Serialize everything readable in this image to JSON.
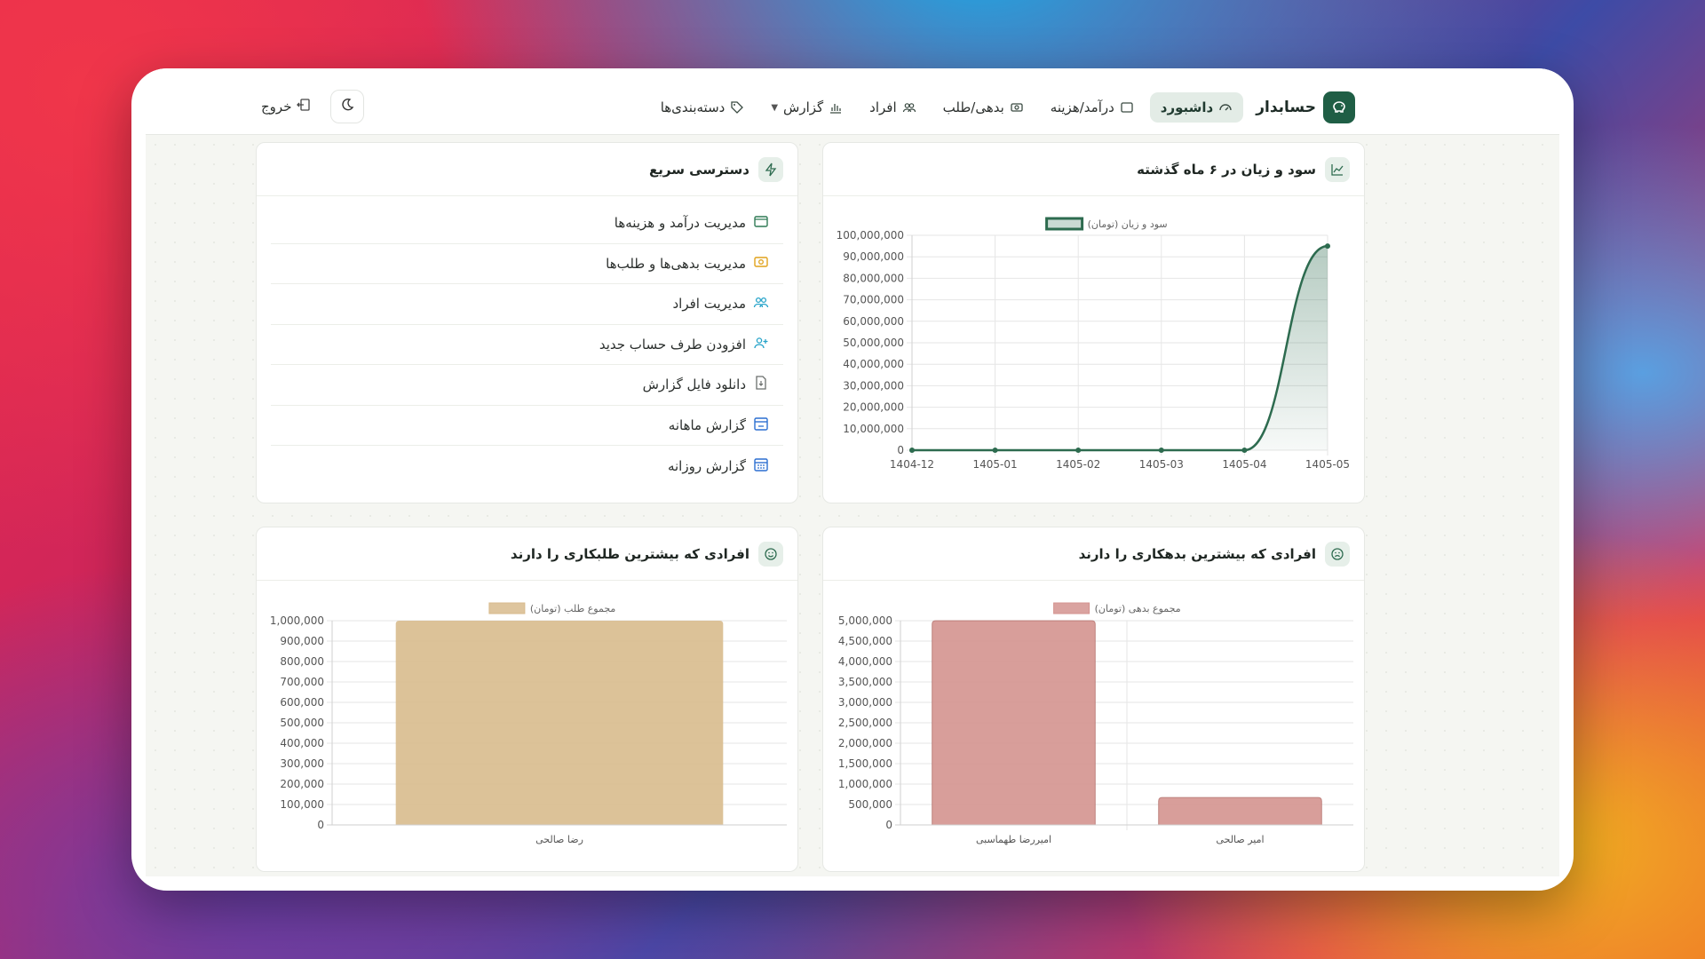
{
  "nav": {
    "brand": "حسابدار",
    "items": [
      {
        "label": "داشبورد",
        "icon": "dashboard-icon"
      },
      {
        "label": "درآمد/هزینه",
        "icon": "wallet-icon"
      },
      {
        "label": "بدهی/طلب",
        "icon": "money-icon"
      },
      {
        "label": "افراد",
        "icon": "people-icon"
      },
      {
        "label": "گزارش",
        "icon": "chart-icon"
      },
      {
        "label": "دسته‌بندی‌ها",
        "icon": "tag-icon"
      }
    ],
    "logout": "خروج"
  },
  "profit_card": {
    "title": "سود و زیان در ۶ ماه گذشته"
  },
  "quick_card": {
    "title": "دسترسی سریع",
    "items": [
      {
        "label": "مدیریت درآمد و هزینه‌ها",
        "icon": "wallet-icon",
        "color": "#2f7a55"
      },
      {
        "label": "مدیریت بدهی‌ها و طلب‌ها",
        "icon": "money-icon",
        "color": "#e0a21b"
      },
      {
        "label": "مدیریت افراد",
        "icon": "people-icon",
        "color": "#25a3c9"
      },
      {
        "label": "افزودن طرف حساب جدید",
        "icon": "person-add-icon",
        "color": "#25a3c9"
      },
      {
        "label": "دانلود فایل گزارش",
        "icon": "file-download-icon",
        "color": "#6b6f6d"
      },
      {
        "label": "گزارش ماهانه",
        "icon": "calendar-month-icon",
        "color": "#2c6fd1"
      },
      {
        "label": "گزارش روزانه",
        "icon": "calendar-day-icon",
        "color": "#2c6fd1"
      }
    ]
  },
  "debtors_card": {
    "title": "افرادی که بیشترین بدهکاری را دارند"
  },
  "creditors_card": {
    "title": "افرادی که بیشترین طلبکاری را دارند"
  },
  "chart_data": [
    {
      "id": "profit",
      "type": "line",
      "legend": "سود و زیان (تومان)",
      "categories": [
        "1404-12",
        "1405-01",
        "1405-02",
        "1405-03",
        "1405-04",
        "1405-05"
      ],
      "values": [
        0,
        0,
        0,
        0,
        0,
        95000000
      ],
      "ylim": [
        0,
        100000000
      ],
      "ytick_step": 10000000,
      "color": "#2d6b4f"
    },
    {
      "id": "debtors",
      "type": "bar",
      "legend": "مجموع بدهی (تومان)",
      "categories": [
        "امیررضا طهماسبی",
        "امیر صالحی"
      ],
      "values": [
        5000000,
        670000
      ],
      "ylim": [
        0,
        5000000
      ],
      "ytick_step": 500000,
      "color": "#d4938f"
    },
    {
      "id": "creditors",
      "type": "bar",
      "legend": "مجموع طلب (تومان)",
      "categories": [
        "رضا صالحی"
      ],
      "values": [
        1000000
      ],
      "ylim": [
        0,
        1000000
      ],
      "ytick_step": 100000,
      "color": "#d8bb8d"
    }
  ]
}
